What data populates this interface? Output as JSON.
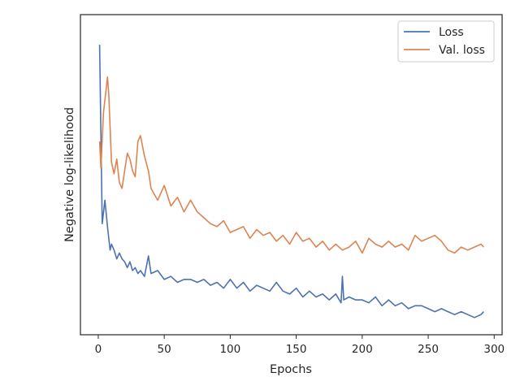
{
  "chart_data": {
    "type": "line",
    "title": "",
    "xlabel": "Epochs",
    "ylabel": "Negative log-likelihood",
    "xlim": [
      -13.5,
      306
    ],
    "ylim": [
      0,
      1
    ],
    "xticks": [
      0,
      50,
      100,
      150,
      200,
      250,
      300
    ],
    "yticks_visible": false,
    "grid": false,
    "legend_position": "top-right",
    "series": [
      {
        "name": "Loss",
        "color": "#4c72b0",
        "x": [
          1,
          3,
          5,
          7,
          9,
          10,
          12,
          14,
          16,
          18,
          20,
          22,
          24,
          26,
          28,
          30,
          32,
          35,
          38,
          40,
          45,
          50,
          55,
          60,
          65,
          70,
          75,
          80,
          85,
          90,
          95,
          100,
          105,
          110,
          115,
          120,
          125,
          130,
          135,
          140,
          145,
          150,
          155,
          160,
          165,
          170,
          175,
          180,
          184,
          185,
          186,
          190,
          195,
          200,
          205,
          210,
          215,
          220,
          225,
          230,
          235,
          240,
          245,
          250,
          255,
          260,
          265,
          270,
          275,
          280,
          285,
          290,
          292
        ],
        "y": [
          0.95,
          0.34,
          0.42,
          0.33,
          0.25,
          0.27,
          0.25,
          0.22,
          0.24,
          0.22,
          0.21,
          0.19,
          0.21,
          0.18,
          0.19,
          0.17,
          0.18,
          0.16,
          0.23,
          0.17,
          0.18,
          0.15,
          0.16,
          0.14,
          0.15,
          0.15,
          0.14,
          0.15,
          0.13,
          0.14,
          0.12,
          0.15,
          0.12,
          0.14,
          0.11,
          0.13,
          0.12,
          0.11,
          0.14,
          0.11,
          0.1,
          0.12,
          0.09,
          0.11,
          0.09,
          0.1,
          0.08,
          0.1,
          0.07,
          0.16,
          0.08,
          0.09,
          0.08,
          0.08,
          0.07,
          0.09,
          0.06,
          0.08,
          0.06,
          0.07,
          0.05,
          0.06,
          0.06,
          0.05,
          0.04,
          0.05,
          0.04,
          0.03,
          0.04,
          0.03,
          0.02,
          0.03,
          0.04
        ]
      },
      {
        "name": "Val. loss",
        "color": "#dd8452",
        "x": [
          1,
          2,
          4,
          6,
          7,
          8,
          10,
          12,
          14,
          16,
          18,
          20,
          22,
          24,
          26,
          28,
          30,
          32,
          35,
          38,
          40,
          45,
          50,
          55,
          60,
          65,
          70,
          75,
          80,
          85,
          90,
          95,
          100,
          105,
          110,
          115,
          120,
          125,
          130,
          135,
          140,
          145,
          150,
          155,
          160,
          165,
          170,
          175,
          180,
          185,
          190,
          195,
          200,
          205,
          210,
          215,
          220,
          225,
          230,
          235,
          240,
          245,
          250,
          255,
          260,
          265,
          270,
          275,
          280,
          285,
          290,
          292
        ],
        "y": [
          0.62,
          0.53,
          0.72,
          0.8,
          0.84,
          0.78,
          0.55,
          0.51,
          0.56,
          0.48,
          0.46,
          0.52,
          0.58,
          0.56,
          0.52,
          0.5,
          0.62,
          0.64,
          0.57,
          0.52,
          0.46,
          0.42,
          0.47,
          0.4,
          0.43,
          0.38,
          0.42,
          0.38,
          0.36,
          0.34,
          0.33,
          0.35,
          0.31,
          0.32,
          0.33,
          0.29,
          0.32,
          0.3,
          0.31,
          0.28,
          0.3,
          0.27,
          0.31,
          0.28,
          0.29,
          0.26,
          0.28,
          0.25,
          0.27,
          0.25,
          0.26,
          0.28,
          0.24,
          0.29,
          0.27,
          0.26,
          0.28,
          0.26,
          0.27,
          0.25,
          0.3,
          0.28,
          0.29,
          0.3,
          0.28,
          0.25,
          0.24,
          0.26,
          0.25,
          0.26,
          0.27,
          0.26
        ]
      }
    ]
  }
}
